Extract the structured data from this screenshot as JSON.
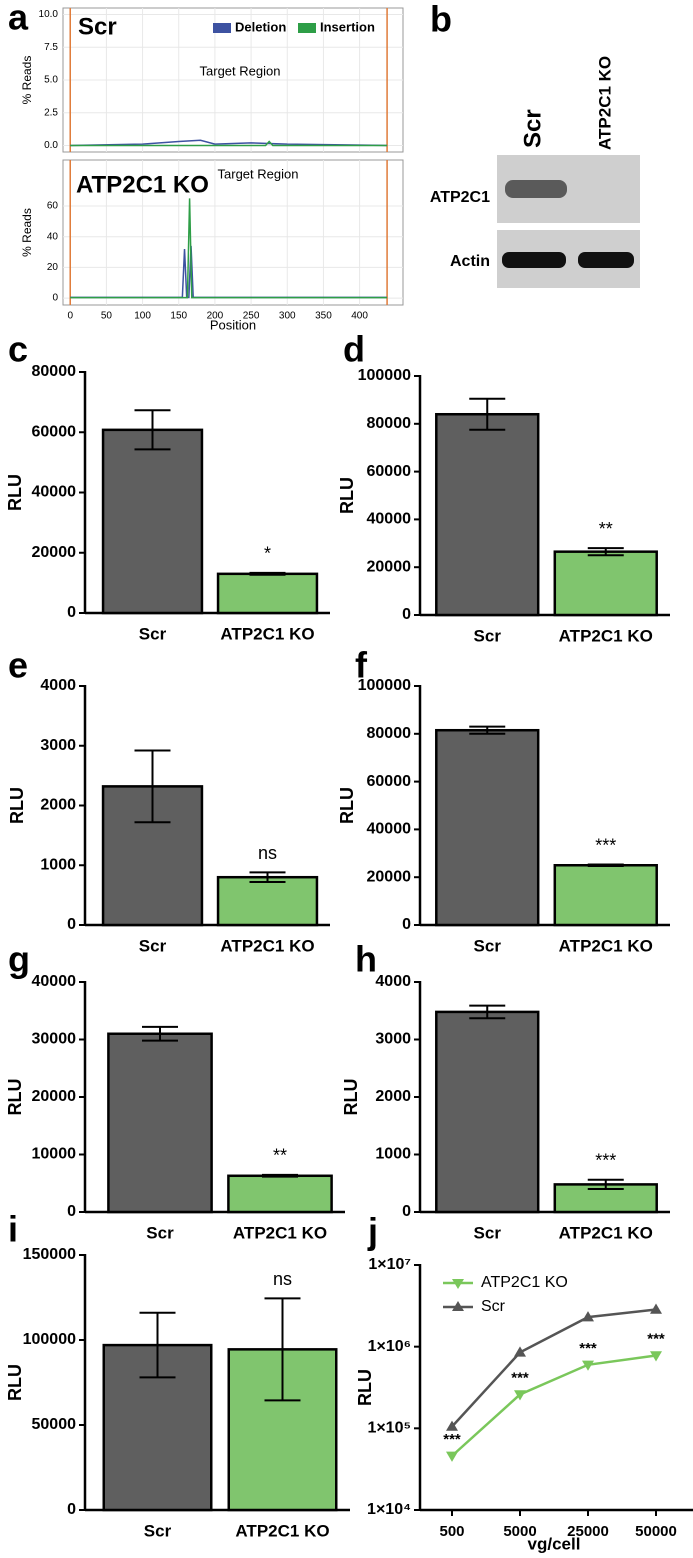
{
  "chart_data": [
    {
      "type": "line",
      "panel_label": "a",
      "title": "Scr",
      "annotation": "Target Region",
      "ylabel": "% Reads",
      "xlim": [
        -10,
        460
      ],
      "xticks": [
        0,
        50,
        100,
        150,
        200,
        250,
        300,
        350,
        400
      ],
      "show_xtick_labels": false,
      "ylim": [
        -0.5,
        10.5
      ],
      "yticks": [
        {
          "value": 0,
          "label": "0.0"
        },
        {
          "value": 2.5,
          "label": "2.5"
        },
        {
          "value": 5,
          "label": "5.0"
        },
        {
          "value": 7.5,
          "label": "7.5"
        },
        {
          "value": 10,
          "label": "10.0"
        }
      ],
      "grid": true,
      "legend": "top-right",
      "vlines": [
        0,
        438
      ],
      "vline_color": "#e07b39",
      "series": [
        {
          "name": "Deletion",
          "color": "#3d52a1",
          "x": [
            0,
            100,
            150,
            180,
            200,
            250,
            300,
            438
          ],
          "values": [
            0,
            0.1,
            0.3,
            0.4,
            0.1,
            0.2,
            0.1,
            0
          ]
        },
        {
          "name": "Insertion",
          "color": "#2e9e47",
          "x": [
            0,
            270,
            275,
            280,
            438
          ],
          "values": [
            0,
            0,
            0.3,
            0,
            0
          ]
        }
      ]
    },
    {
      "type": "line",
      "title": "ATP2C1 KO",
      "annotation": "Target Region",
      "ylabel": "% Reads",
      "xlabel": "Position",
      "xlim": [
        -10,
        460
      ],
      "xticks": [
        0,
        50,
        100,
        150,
        200,
        250,
        300,
        350,
        400
      ],
      "show_xtick_labels": true,
      "ylim": [
        -4.5,
        90
      ],
      "yticks": [
        0,
        20,
        40,
        60
      ],
      "grid": true,
      "vlines": [
        0,
        438
      ],
      "vline_color": "#e07b39",
      "series": [
        {
          "name": "Deletion",
          "color": "#3d52a1",
          "x": [
            0,
            155,
            158,
            161,
            164,
            167,
            170,
            438
          ],
          "values": [
            0.5,
            0.5,
            32,
            0.5,
            0.5,
            34,
            0.5,
            0.5
          ]
        },
        {
          "name": "Insertion",
          "color": "#2e9e47",
          "x": [
            0,
            162,
            165,
            168,
            438
          ],
          "values": [
            0.3,
            0.3,
            65,
            0.3,
            0.3
          ]
        }
      ]
    },
    {
      "type": "bar",
      "panel_label": "c",
      "ylabel": "RLU",
      "categories": [
        "Scr",
        "ATP2C1 KO"
      ],
      "values": [
        60800,
        13000
      ],
      "errors": [
        6500,
        300
      ],
      "colors": [
        "#5f5f5f",
        "#80c56e"
      ],
      "annotation": "*",
      "ylim": [
        0,
        80000
      ],
      "yticks": [
        0,
        20000,
        40000,
        60000,
        80000
      ]
    },
    {
      "type": "bar",
      "panel_label": "d",
      "ylabel": "RLU",
      "categories": [
        "Scr",
        "ATP2C1 KO"
      ],
      "values": [
        84000,
        26500
      ],
      "errors": [
        6500,
        1500
      ],
      "colors": [
        "#5f5f5f",
        "#80c56e"
      ],
      "annotation": "**",
      "ylim": [
        0,
        100000
      ],
      "yticks": [
        0,
        20000,
        40000,
        60000,
        80000,
        100000
      ]
    },
    {
      "type": "bar",
      "panel_label": "e",
      "ylabel": "RLU",
      "categories": [
        "Scr",
        "ATP2C1 KO"
      ],
      "values": [
        2320,
        800
      ],
      "errors": [
        600,
        80
      ],
      "colors": [
        "#5f5f5f",
        "#80c56e"
      ],
      "annotation": "ns",
      "ylim": [
        0,
        4000
      ],
      "yticks": [
        0,
        1000,
        2000,
        3000,
        4000
      ]
    },
    {
      "type": "bar",
      "panel_label": "f",
      "ylabel": "RLU",
      "categories": [
        "Scr",
        "ATP2C1 KO"
      ],
      "values": [
        81500,
        25000
      ],
      "errors": [
        1500,
        300
      ],
      "colors": [
        "#5f5f5f",
        "#80c56e"
      ],
      "annotation": "***",
      "ylim": [
        0,
        100000
      ],
      "yticks": [
        0,
        20000,
        40000,
        60000,
        80000,
        100000
      ]
    },
    {
      "type": "bar",
      "panel_label": "g",
      "ylabel": "RLU",
      "categories": [
        "Scr",
        "ATP2C1 KO"
      ],
      "values": [
        31000,
        6300
      ],
      "errors": [
        1200,
        150
      ],
      "colors": [
        "#5f5f5f",
        "#80c56e"
      ],
      "annotation": "**",
      "ylim": [
        0,
        40000
      ],
      "yticks": [
        0,
        10000,
        20000,
        30000,
        40000
      ]
    },
    {
      "type": "bar",
      "panel_label": "h",
      "ylabel": "RLU",
      "categories": [
        "Scr",
        "ATP2C1 KO"
      ],
      "values": [
        3480,
        480
      ],
      "errors": [
        110,
        80
      ],
      "colors": [
        "#5f5f5f",
        "#80c56e"
      ],
      "annotation": "***",
      "ylim": [
        0,
        4000
      ],
      "yticks": [
        0,
        1000,
        2000,
        3000,
        4000
      ]
    },
    {
      "type": "bar",
      "panel_label": "i",
      "ylabel": "RLU",
      "categories": [
        "Scr",
        "ATP2C1 KO"
      ],
      "values": [
        97000,
        94500
      ],
      "errors": [
        19000,
        30000
      ],
      "colors": [
        "#5f5f5f",
        "#80c56e"
      ],
      "annotation": "ns",
      "ylim": [
        0,
        150000
      ],
      "yticks": [
        0,
        50000,
        100000,
        150000
      ]
    },
    {
      "type": "line",
      "panel_label": "j",
      "ylabel": "RLU",
      "xlabel": "vg/cell",
      "yscale": "log",
      "legend": "top-left",
      "categories": [
        "500",
        "5000",
        "25000",
        "50000"
      ],
      "ylim": [
        10000,
        10000000
      ],
      "yticks": [
        {
          "value": 10000,
          "label": "1×10⁴"
        },
        {
          "value": 100000,
          "label": "1×10⁵"
        },
        {
          "value": 1000000,
          "label": "1×10⁶"
        },
        {
          "value": 10000000,
          "label": "1×10⁷"
        }
      ],
      "series": [
        {
          "name": "ATP2C1 KO",
          "color": "#7ac75b",
          "marker": "triangle-down",
          "values": [
            46000,
            260000,
            600000,
            780000
          ],
          "point_labels": [
            "***",
            "***",
            "***",
            "***"
          ]
        },
        {
          "name": "Scr",
          "color": "#555555",
          "marker": "triangle-up",
          "values": [
            105000,
            850000,
            2300000,
            2850000
          ]
        }
      ]
    }
  ],
  "blot": {
    "panel_label": "b",
    "lanes": [
      "Scr",
      "ATP2C1 KO"
    ],
    "rows": [
      "ATP2C1",
      "Actin"
    ]
  }
}
